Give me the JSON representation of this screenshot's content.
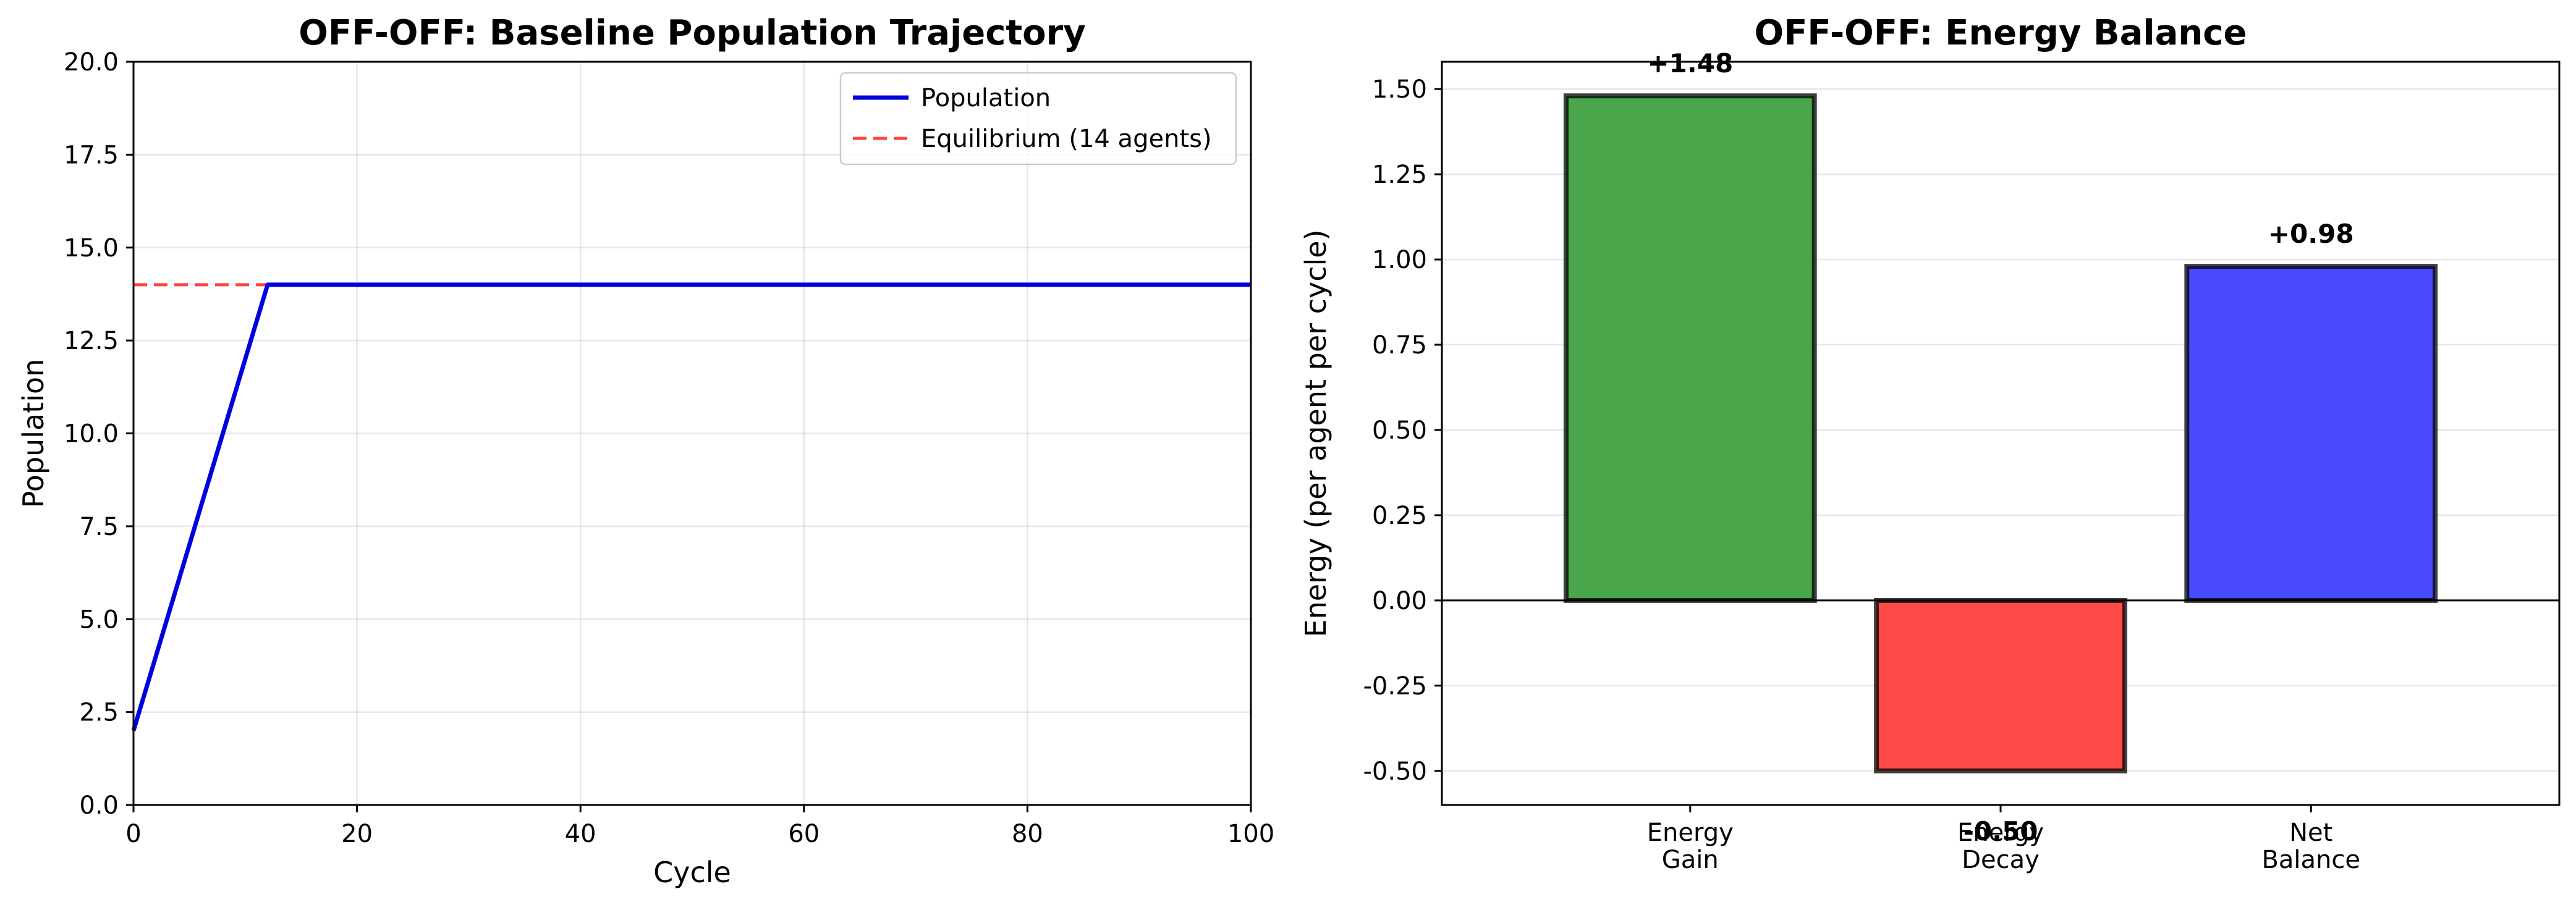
{
  "chart_data": [
    {
      "type": "line",
      "title": "OFF-OFF: Baseline Population Trajectory",
      "xlabel": "Cycle",
      "ylabel": "Population",
      "xlim": [
        0,
        100
      ],
      "ylim": [
        0,
        20
      ],
      "xticks": [
        0,
        20,
        40,
        60,
        80,
        100
      ],
      "yticks": [
        0.0,
        2.5,
        5.0,
        7.5,
        10.0,
        12.5,
        15.0,
        17.5,
        20.0
      ],
      "grid": true,
      "legend_position": "top-right",
      "series": [
        {
          "name": "Population",
          "color": "#0000dd",
          "style": "solid",
          "x": [
            0,
            12,
            100
          ],
          "y": [
            2,
            14,
            14
          ]
        },
        {
          "name": "Equilibrium (14 agents)",
          "color": "#ff4444",
          "style": "dashed",
          "x": [
            0,
            100
          ],
          "y": [
            14,
            14
          ]
        }
      ]
    },
    {
      "type": "bar",
      "title": "OFF-OFF: Energy Balance",
      "xlabel": "",
      "ylabel": "Energy (per agent per cycle)",
      "ylim": [
        -0.6,
        1.58
      ],
      "yticks": [
        -0.5,
        -0.25,
        0.0,
        0.25,
        0.5,
        0.75,
        1.0,
        1.25,
        1.5
      ],
      "grid": true,
      "categories": [
        [
          "Energy",
          "Gain"
        ],
        [
          "Energy",
          "Decay"
        ],
        [
          "Net",
          "Balance"
        ]
      ],
      "values": [
        1.48,
        -0.5,
        0.98
      ],
      "data_labels": [
        "+1.48",
        "-0.50",
        "+0.98"
      ],
      "colors": [
        "#4aa64a",
        "#ff4a4a",
        "#4a4aff"
      ]
    }
  ]
}
